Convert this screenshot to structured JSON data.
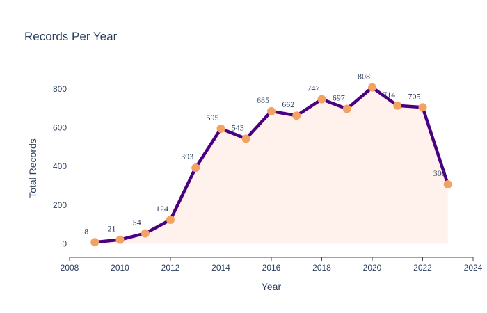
{
  "chart_data": {
    "type": "line",
    "title": "Records Per Year",
    "xlabel": "Year",
    "ylabel": "Total Records",
    "x": [
      2009,
      2010,
      2011,
      2012,
      2013,
      2014,
      2015,
      2016,
      2017,
      2018,
      2019,
      2020,
      2021,
      2022,
      2023
    ],
    "values": [
      8,
      21,
      54,
      124,
      393,
      595,
      543,
      685,
      662,
      747,
      697,
      808,
      714,
      705,
      307
    ],
    "xlim": [
      2008,
      2024
    ],
    "ylim": [
      -70,
      900
    ],
    "xticks": [
      2008,
      2010,
      2012,
      2014,
      2016,
      2018,
      2020,
      2022,
      2024
    ],
    "yticks": [
      0,
      200,
      400,
      600,
      800
    ],
    "grid": false,
    "fill": "tozeroy",
    "colors": {
      "line": "#4b0082",
      "marker": "#f4a261",
      "fill": "#fff1ec",
      "text": "#2a3f5f",
      "axis": "#444444"
    }
  }
}
